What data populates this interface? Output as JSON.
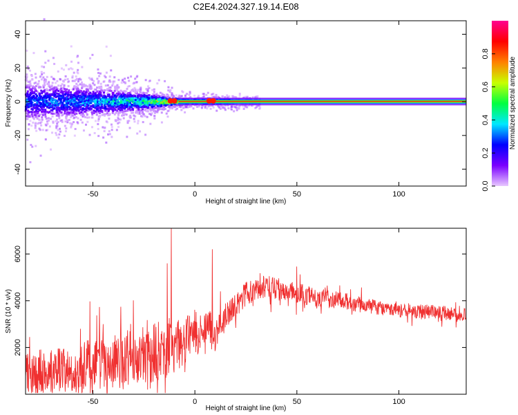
{
  "title": "C2E4.2024.327.19.14.E08",
  "colors": {
    "signal": "#f03030",
    "background": "#ffffff",
    "axis": "#000000"
  },
  "chart_data": [
    {
      "type": "heatmap",
      "xlabel": "Height of straight line (km)",
      "ylabel": "Frequency (Hz)",
      "xlim": [
        -83,
        133
      ],
      "ylim": [
        -50,
        48
      ],
      "x_ticks": [
        -50,
        0,
        50,
        100
      ],
      "x_tick_labels": [
        "-50",
        "0",
        "50",
        "100"
      ],
      "y_ticks": [
        -40,
        -20,
        0,
        20,
        40
      ],
      "y_tick_labels": [
        "-40",
        "-20",
        "0",
        "20",
        "40"
      ],
      "description_trend": [
        {
          "x": -80,
          "spread_hz": 10,
          "peak_amplitude": 0.35
        },
        {
          "x": -50,
          "spread_hz": 8,
          "peak_amplitude": 0.4
        },
        {
          "x": -25,
          "spread_hz": 5,
          "peak_amplitude": 0.55
        },
        {
          "x": -10,
          "spread_hz": 2,
          "peak_amplitude": 0.85
        },
        {
          "x": 0,
          "spread_hz": 1.5,
          "peak_amplitude": 0.9
        },
        {
          "x": 50,
          "spread_hz": 1.5,
          "peak_amplitude": 0.95
        },
        {
          "x": 130,
          "spread_hz": 1.5,
          "peak_amplitude": 0.95
        }
      ],
      "colorbar": {
        "label": "Normalized spectral amplitude",
        "range": [
          0,
          1
        ],
        "ticks": [
          0.0,
          0.2,
          0.4,
          0.6,
          0.8
        ],
        "tick_labels": [
          "0.0",
          "0.2",
          "0.4",
          "0.6",
          "0.8"
        ],
        "stops": [
          "#e8c8ff",
          "#7a00ff",
          "#0000ff",
          "#00e8ff",
          "#00ff40",
          "#c8ff00",
          "#ff8000",
          "#ff0000",
          "#ff0090"
        ]
      }
    },
    {
      "type": "line",
      "xlabel": "Height of straight line (km)",
      "ylabel": "SNR (10 * v/v)",
      "xlim": [
        -83,
        133
      ],
      "ylim": [
        0,
        7100
      ],
      "x_ticks": [
        -50,
        0,
        50,
        100
      ],
      "x_tick_labels": [
        "-50",
        "0",
        "50",
        "100"
      ],
      "y_ticks": [
        2000,
        4000,
        6000
      ],
      "y_tick_labels": [
        "2000",
        "4000",
        "6000"
      ],
      "series": [
        {
          "x": [
            -83,
            -70,
            -60,
            -50,
            -40,
            -30,
            -20,
            -12,
            -10,
            -5,
            0,
            5,
            8,
            10,
            12,
            15,
            20,
            25,
            30,
            35,
            40,
            45,
            50,
            55,
            60,
            65,
            70,
            75,
            80,
            90,
            100,
            110,
            120,
            133
          ],
          "y": [
            900,
            1000,
            1100,
            1250,
            1400,
            1600,
            1800,
            2150,
            2000,
            2300,
            2650,
            2850,
            3000,
            2400,
            3000,
            3300,
            3800,
            4300,
            4500,
            4550,
            4500,
            4400,
            4350,
            4200,
            4150,
            4100,
            4050,
            3950,
            3850,
            3700,
            3600,
            3550,
            3500,
            3400
          ],
          "noise": [
            600,
            600,
            650,
            700,
            750,
            750,
            800,
            800,
            700,
            650,
            550,
            450,
            400,
            350,
            350,
            330,
            320,
            320,
            330,
            330,
            320,
            300,
            290,
            270,
            250,
            240,
            230,
            220,
            210,
            200,
            200,
            190,
            190,
            190
          ],
          "spikes": [
            {
              "x": -13.5,
              "y": 5600
            },
            {
              "x": -11.5,
              "y": 7100
            },
            {
              "x": 8.5,
              "y": 6200
            },
            {
              "x": 12.5,
              "y": 4400
            },
            {
              "x": -56,
              "y": 2800
            },
            {
              "x": -45,
              "y": 3000
            }
          ]
        }
      ]
    }
  ]
}
